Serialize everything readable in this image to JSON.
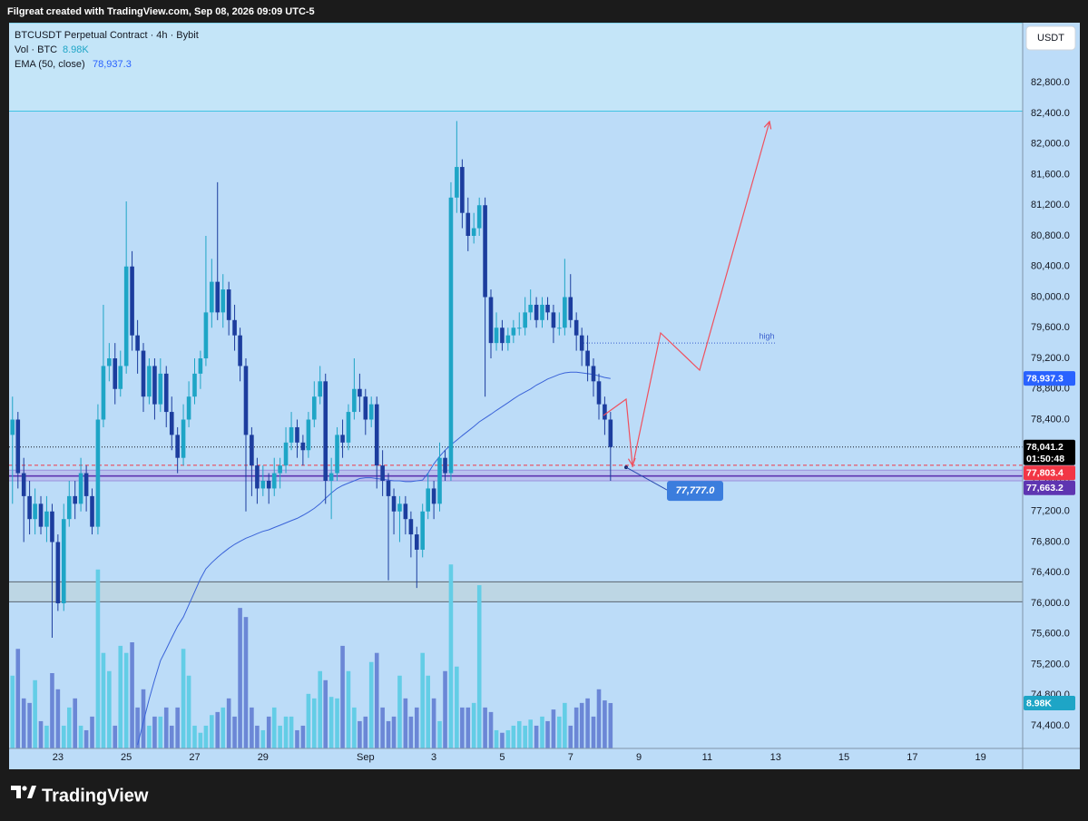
{
  "header": "Filgreat created with TradingView.com, Sep 08, 2026 09:09 UTC-5",
  "footer": "TradingView",
  "chart_data": {
    "type": "candlestick",
    "title": "BTCUSDT Perpetual Contract · 4h · Bybit",
    "currency": "USDT",
    "x": [
      -1.33,
      -1.17,
      -1,
      -0.83,
      -0.67,
      -0.5,
      -0.33,
      -0.17,
      0,
      0.17,
      0.33,
      0.5,
      0.67,
      0.83,
      1,
      1.17,
      1.33,
      1.5,
      1.67,
      1.83,
      2,
      2.17,
      2.33,
      2.5,
      2.67,
      2.83,
      3,
      3.17,
      3.33,
      3.5,
      3.67,
      3.83,
      4,
      4.17,
      4.33,
      4.5,
      4.67,
      4.83,
      5,
      5.17,
      5.33,
      5.5,
      5.67,
      5.83,
      6,
      6.17,
      6.33,
      6.5,
      6.67,
      6.83,
      7,
      7.17,
      7.33,
      7.5,
      7.67,
      7.83,
      8,
      8.17,
      8.33,
      8.5,
      8.67,
      8.83,
      9,
      9.17,
      9.33,
      9.5,
      9.67,
      9.83,
      10,
      10.17,
      10.33,
      10.5,
      10.67,
      10.83,
      11,
      11.17,
      11.33,
      11.5,
      11.67,
      11.83,
      12,
      12.17,
      12.33,
      12.5,
      12.67,
      12.83,
      13,
      13.17,
      13.33,
      13.5,
      13.67,
      13.83,
      14,
      14.17,
      14.33,
      14.5,
      14.67,
      14.83,
      15,
      15.17,
      15.33,
      15.5,
      15.67,
      15.83,
      16,
      16.17
    ],
    "candles": [
      [
        78200,
        78700,
        77300,
        78400
      ],
      [
        78400,
        78500,
        77500,
        77700
      ],
      [
        77700,
        77900,
        76800,
        77400
      ],
      [
        77400,
        77600,
        76900,
        77100
      ],
      [
        77100,
        77500,
        76900,
        77300
      ],
      [
        77300,
        77400,
        76900,
        77000
      ],
      [
        77000,
        77400,
        76800,
        77200
      ],
      [
        77200,
        77300,
        75550,
        76800
      ],
      [
        76800,
        76900,
        75900,
        76000
      ],
      [
        76000,
        77300,
        75900,
        77100
      ],
      [
        77100,
        77600,
        77000,
        77400
      ],
      [
        77400,
        77600,
        77100,
        77300
      ],
      [
        77300,
        77900,
        77200,
        77700
      ],
      [
        77700,
        77800,
        77200,
        77400
      ],
      [
        77400,
        77500,
        76900,
        77000
      ],
      [
        77000,
        78600,
        76900,
        78400
      ],
      [
        78400,
        79900,
        78300,
        79100
      ],
      [
        79100,
        79400,
        78900,
        79200
      ],
      [
        79200,
        79400,
        78600,
        78800
      ],
      [
        78800,
        79300,
        78700,
        79100
      ],
      [
        79100,
        81250,
        79000,
        80400
      ],
      [
        80400,
        80600,
        79300,
        79500
      ],
      [
        79500,
        79700,
        79000,
        79300
      ],
      [
        79300,
        79400,
        78500,
        78700
      ],
      [
        78700,
        79200,
        78600,
        79100
      ],
      [
        79100,
        79200,
        78400,
        78600
      ],
      [
        78600,
        79200,
        78500,
        79000
      ],
      [
        79000,
        79100,
        78300,
        78500
      ],
      [
        78500,
        78700,
        78000,
        78200
      ],
      [
        78200,
        78300,
        77700,
        77900
      ],
      [
        77900,
        78600,
        77800,
        78400
      ],
      [
        78400,
        78900,
        78300,
        78700
      ],
      [
        78700,
        79200,
        78600,
        79000
      ],
      [
        79000,
        79300,
        78800,
        79200
      ],
      [
        79200,
        80800,
        79100,
        79800
      ],
      [
        79800,
        80500,
        79600,
        80200
      ],
      [
        80200,
        81500,
        79700,
        79800
      ],
      [
        79800,
        80300,
        79600,
        80100
      ],
      [
        80100,
        80200,
        79500,
        79700
      ],
      [
        79700,
        79900,
        79300,
        79500
      ],
      [
        79500,
        79600,
        78900,
        79100
      ],
      [
        79100,
        79200,
        77200,
        78200
      ],
      [
        78200,
        78300,
        77400,
        77800
      ],
      [
        77800,
        77900,
        77300,
        77500
      ],
      [
        77500,
        77800,
        77400,
        77600
      ],
      [
        77600,
        77700,
        77300,
        77500
      ],
      [
        77500,
        77900,
        77400,
        77700
      ],
      [
        77700,
        77900,
        77500,
        77800
      ],
      [
        77800,
        78300,
        77700,
        78100
      ],
      [
        78100,
        78500,
        78000,
        78300
      ],
      [
        78300,
        78400,
        77900,
        78100
      ],
      [
        78100,
        78200,
        77800,
        78000
      ],
      [
        78000,
        78500,
        77900,
        78400
      ],
      [
        78400,
        78900,
        78300,
        78700
      ],
      [
        78700,
        79100,
        78600,
        78900
      ],
      [
        78900,
        79000,
        77300,
        77600
      ],
      [
        77600,
        77900,
        77100,
        77700
      ],
      [
        77700,
        78300,
        77600,
        78200
      ],
      [
        78200,
        78400,
        77900,
        78100
      ],
      [
        78100,
        78600,
        78000,
        78500
      ],
      [
        78500,
        79200,
        78400,
        78800
      ],
      [
        78800,
        79000,
        78500,
        78700
      ],
      [
        78700,
        78800,
        78200,
        78400
      ],
      [
        78400,
        78700,
        78300,
        78600
      ],
      [
        78600,
        78700,
        77500,
        77800
      ],
      [
        77800,
        78000,
        77400,
        77600
      ],
      [
        77600,
        77700,
        76300,
        77400
      ],
      [
        77400,
        77500,
        76900,
        77200
      ],
      [
        77200,
        77400,
        76800,
        77300
      ],
      [
        77300,
        77400,
        76900,
        77100
      ],
      [
        77100,
        77200,
        76600,
        76900
      ],
      [
        76900,
        77000,
        76200,
        76700
      ],
      [
        76700,
        77300,
        76600,
        77200
      ],
      [
        77200,
        77700,
        77100,
        77500
      ],
      [
        77500,
        77600,
        77100,
        77300
      ],
      [
        77300,
        78100,
        77200,
        77900
      ],
      [
        77900,
        78000,
        77600,
        77700
      ],
      [
        77700,
        81500,
        77600,
        81300
      ],
      [
        81300,
        82300,
        81100,
        81700
      ],
      [
        81700,
        81800,
        80900,
        81100
      ],
      [
        81100,
        81300,
        80600,
        80800
      ],
      [
        80800,
        81100,
        80700,
        80900
      ],
      [
        80900,
        81300,
        80800,
        81200
      ],
      [
        81200,
        81300,
        78700,
        80000
      ],
      [
        80000,
        80100,
        79200,
        79400
      ],
      [
        79400,
        79800,
        79300,
        79600
      ],
      [
        79600,
        79700,
        79300,
        79400
      ],
      [
        79400,
        79600,
        79300,
        79500
      ],
      [
        79500,
        79700,
        79400,
        79600
      ],
      [
        79600,
        79800,
        79500,
        79600
      ],
      [
        79600,
        80000,
        79500,
        79800
      ],
      [
        79800,
        80100,
        79700,
        79900
      ],
      [
        79900,
        80000,
        79600,
        79700
      ],
      [
        79700,
        80000,
        79600,
        79900
      ],
      [
        79900,
        80000,
        79700,
        79800
      ],
      [
        79800,
        79900,
        79400,
        79600
      ],
      [
        79600,
        79800,
        79500,
        79600
      ],
      [
        79600,
        80500,
        79500,
        80000
      ],
      [
        80000,
        80300,
        79600,
        79700
      ],
      [
        79700,
        79800,
        79300,
        79500
      ],
      [
        79500,
        79600,
        79100,
        79300
      ],
      [
        79300,
        79500,
        78900,
        79100
      ],
      [
        79100,
        79200,
        78700,
        78900
      ],
      [
        78900,
        79000,
        78400,
        78600
      ],
      [
        78600,
        78700,
        78200,
        78400
      ],
      [
        78400,
        78500,
        77600,
        78041.2
      ]
    ],
    "up_color": "#1ea5c6",
    "down_color": "#1c3d9e",
    "volume": {
      "name": "Vol · BTC",
      "last_label": "8.98K",
      "up_color": "#63cde6",
      "down_color": "#6b87d6",
      "vlim": [
        0,
        143600
      ],
      "values": [
        14400,
        19700,
        9900,
        9000,
        13500,
        5400,
        4500,
        14900,
        11700,
        4500,
        8100,
        9900,
        4500,
        3600,
        6300,
        35400,
        18900,
        15300,
        4500,
        20300,
        18900,
        21000,
        8100,
        11700,
        4500,
        6300,
        6300,
        8100,
        4500,
        8100,
        19700,
        14400,
        4500,
        3100,
        4500,
        6600,
        7200,
        8100,
        9900,
        6300,
        27800,
        26000,
        8100,
        4500,
        3600,
        6300,
        8100,
        4500,
        6300,
        6300,
        3600,
        4500,
        10800,
        9900,
        15300,
        13500,
        10200,
        9900,
        20300,
        15300,
        8100,
        5400,
        6300,
        17100,
        18900,
        8100,
        5400,
        6300,
        14400,
        9900,
        6300,
        8100,
        18900,
        14400,
        9900,
        5400,
        15300,
        36400,
        16200,
        8100,
        8100,
        9000,
        32300,
        8100,
        7200,
        3600,
        3100,
        3600,
        4500,
        5400,
        4500,
        5700,
        4500,
        6300,
        5400,
        7700,
        6300,
        9000,
        4500,
        8100,
        9000,
        9900,
        6300,
        11700,
        9500,
        8980
      ]
    },
    "ema": {
      "name": "EMA (50, close)",
      "last_label": "78,937.3",
      "color": "#3a63d8",
      "values": [
        null,
        null,
        null,
        null,
        null,
        null,
        null,
        null,
        null,
        null,
        null,
        null,
        null,
        null,
        null,
        null,
        null,
        null,
        null,
        null,
        null,
        null,
        74150,
        74450,
        74750,
        75000,
        75250,
        75400,
        75550,
        75700,
        75820,
        75980,
        76150,
        76320,
        76450,
        76530,
        76600,
        76660,
        76720,
        76770,
        76810,
        76850,
        76880,
        76910,
        76940,
        76960,
        76990,
        77020,
        77050,
        77080,
        77110,
        77150,
        77190,
        77240,
        77300,
        77370,
        77440,
        77500,
        77540,
        77570,
        77600,
        77630,
        77640,
        77640,
        77630,
        77620,
        77610,
        77600,
        77600,
        77590,
        77590,
        77600,
        77610,
        77700,
        77820,
        77920,
        78000,
        78070,
        78130,
        78190,
        78250,
        78310,
        78370,
        78420,
        78470,
        78520,
        78570,
        78620,
        78670,
        78720,
        78760,
        78800,
        78850,
        78890,
        78930,
        78960,
        78990,
        79010,
        79020,
        79020,
        79010,
        79000,
        78990,
        78970,
        78950,
        78937.3
      ]
    },
    "xlim": [
      -1.43,
      28.23
    ],
    "xticks": [
      {
        "value": 0,
        "label": "23"
      },
      {
        "value": 2,
        "label": "25"
      },
      {
        "value": 4,
        "label": "27"
      },
      {
        "value": 6,
        "label": "29"
      },
      {
        "value": 9,
        "label": "Sep"
      },
      {
        "value": 11,
        "label": "3"
      },
      {
        "value": 13,
        "label": "5"
      },
      {
        "value": 15,
        "label": "7"
      },
      {
        "value": 17,
        "label": "9"
      },
      {
        "value": 19,
        "label": "11"
      },
      {
        "value": 21,
        "label": "13"
      },
      {
        "value": 23,
        "label": "15"
      },
      {
        "value": 25,
        "label": "17"
      },
      {
        "value": 27,
        "label": "19"
      }
    ],
    "ylim": [
      74104,
      83585
    ],
    "yticks": [
      {
        "value": 74400,
        "label": "74,400.0"
      },
      {
        "value": 74800,
        "label": "74,800.0"
      },
      {
        "value": 75200,
        "label": "75,200.0"
      },
      {
        "value": 75600,
        "label": "75,600.0"
      },
      {
        "value": 76000,
        "label": "76,000.0"
      },
      {
        "value": 76400,
        "label": "76,400.0"
      },
      {
        "value": 76800,
        "label": "76,800.0"
      },
      {
        "value": 77200,
        "label": "77,200.0"
      },
      {
        "value": 77600,
        "label": "77,600.0"
      },
      {
        "value": 78000,
        "label": "78,000.0"
      },
      {
        "value": 78400,
        "label": "78,400.0"
      },
      {
        "value": 78800,
        "label": "78,800.0"
      },
      {
        "value": 79200,
        "label": "79,200.0"
      },
      {
        "value": 79600,
        "label": "79,600.0"
      },
      {
        "value": 80000,
        "label": "80,000.0"
      },
      {
        "value": 80400,
        "label": "80,400.0"
      },
      {
        "value": 80800,
        "label": "80,800.0"
      },
      {
        "value": 81200,
        "label": "81,200.0"
      },
      {
        "value": 81600,
        "label": "81,600.0"
      },
      {
        "value": 82000,
        "label": "82,000.0"
      },
      {
        "value": 82400,
        "label": "82,400.0"
      },
      {
        "value": 82800,
        "label": "82,800.0"
      }
    ],
    "grid": false,
    "last_price": {
      "value": 78041.2,
      "label": "78,041.2",
      "countdown": "01:50:48"
    },
    "levels": [
      {
        "value": 77803.4,
        "label": "77,803.4",
        "color": "#f23645",
        "style": "dashed"
      },
      {
        "value": 77663.2,
        "label": "77,663.2",
        "color": "#5e35b1",
        "style": "solid"
      }
    ],
    "zones": [
      {
        "from": 82430,
        "to": 83585,
        "color": "#c4e5f8",
        "edge": "#40c4e3"
      },
      {
        "from": 76020,
        "to": 76280,
        "color": "#bdd6e4",
        "edge": "#5a6570"
      },
      {
        "from": 77600,
        "to": 77740,
        "color": "#b9c3ef",
        "edge": "#9a90dc"
      }
    ],
    "note": {
      "value": 77777,
      "label": "77,777.0",
      "color": "#3b7ddd"
    },
    "marker_line": {
      "value": 79400,
      "label": "high",
      "color": "#3a5fcd"
    }
  }
}
